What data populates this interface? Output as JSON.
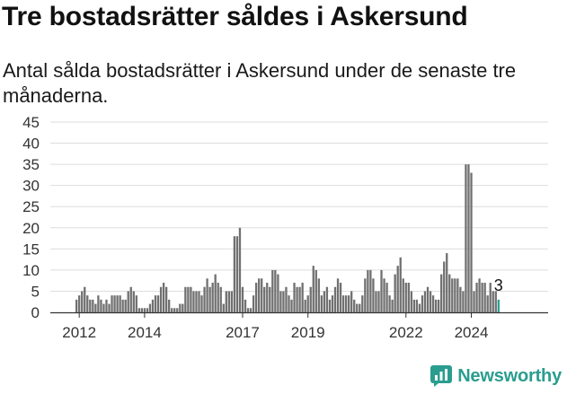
{
  "title": "Tre bostadsrätter såldes i Askersund",
  "subtitle": "Antal sålda bostadsrätter i Askersund under de senaste tre månaderna.",
  "brand": {
    "name": "Newsworthy",
    "color": "#2a9d8f",
    "icon": "newsworthy-logo-icon"
  },
  "colors": {
    "bars": "#707070",
    "highlight": "#2a9d8f",
    "grid": "#dddddd",
    "axis": "#333333"
  },
  "chart_data": {
    "type": "bar",
    "title": "",
    "xlabel": "",
    "ylabel": "",
    "ylim": [
      0,
      45
    ],
    "yticks": [
      0,
      5,
      10,
      15,
      20,
      25,
      30,
      35,
      40,
      45
    ],
    "x_start": "2011-12",
    "xtick_labels": [
      {
        "label": "2012",
        "month": "2012-01"
      },
      {
        "label": "2014",
        "month": "2014-01"
      },
      {
        "label": "2017",
        "month": "2017-01"
      },
      {
        "label": "2019",
        "month": "2019-01"
      },
      {
        "label": "2022",
        "month": "2022-01"
      },
      {
        "label": "2024",
        "month": "2024-01"
      }
    ],
    "grid": true,
    "highlight_last": true,
    "last_value_label": "3",
    "values": [
      3,
      4,
      5,
      6,
      4,
      3,
      3,
      2,
      4,
      3,
      2,
      3,
      2,
      4,
      4,
      4,
      4,
      3,
      3,
      5,
      6,
      5,
      4,
      1,
      1,
      1,
      1,
      2,
      3,
      4,
      4,
      6,
      7,
      6,
      3,
      1,
      1,
      1,
      2,
      2,
      6,
      6,
      6,
      5,
      5,
      5,
      4,
      6,
      8,
      6,
      7,
      9,
      7,
      6,
      2,
      5,
      5,
      5,
      18,
      18,
      20,
      6,
      3,
      1,
      1,
      4,
      7,
      8,
      8,
      6,
      7,
      6,
      10,
      10,
      9,
      5,
      5,
      6,
      4,
      3,
      7,
      6,
      6,
      7,
      3,
      4,
      6,
      11,
      10,
      8,
      4,
      5,
      6,
      3,
      4,
      6,
      8,
      7,
      4,
      4,
      4,
      5,
      3,
      2,
      2,
      4,
      8,
      10,
      10,
      8,
      5,
      5,
      10,
      8,
      7,
      4,
      3,
      9,
      11,
      13,
      8,
      7,
      7,
      5,
      3,
      3,
      2,
      4,
      5,
      6,
      5,
      4,
      3,
      3,
      9,
      12,
      14,
      9,
      8,
      8,
      8,
      6,
      5,
      35,
      35,
      33,
      5,
      7,
      8,
      7,
      7,
      4,
      7,
      5,
      5,
      3
    ]
  }
}
